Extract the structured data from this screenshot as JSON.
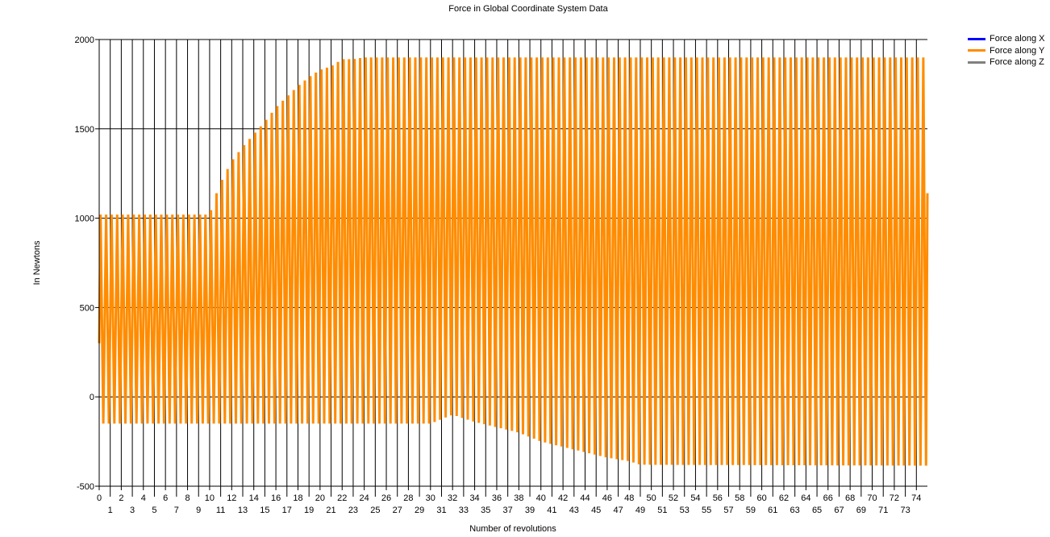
{
  "chart_data": {
    "type": "line",
    "title": "Force in Global Coordinate System Data",
    "xlabel": "Number of revolutions",
    "ylabel": "In Newtons",
    "xlim": [
      0,
      75
    ],
    "ylim": [
      -500,
      2000
    ],
    "yticks": [
      -500,
      0,
      500,
      1000,
      1500,
      2000
    ],
    "xticks": [
      0,
      1,
      2,
      3,
      4,
      5,
      6,
      7,
      8,
      9,
      10,
      11,
      12,
      13,
      14,
      15,
      16,
      17,
      18,
      19,
      20,
      21,
      22,
      23,
      24,
      25,
      26,
      27,
      28,
      29,
      30,
      31,
      32,
      33,
      34,
      35,
      36,
      37,
      38,
      39,
      40,
      41,
      42,
      43,
      44,
      45,
      46,
      47,
      48,
      49,
      50,
      51,
      52,
      53,
      54,
      55,
      56,
      57,
      58,
      59,
      60,
      61,
      62,
      63,
      64,
      65,
      66,
      67,
      68,
      69,
      70,
      71,
      72,
      73,
      74
    ],
    "grid": true,
    "legend_position": "top-right outside",
    "oscillations_per_revolution": 2,
    "series": [
      {
        "name": "Force along X",
        "color": "#0000ff",
        "values": []
      },
      {
        "name": "Force along Y",
        "color": "#ff8c00",
        "start_value": 300,
        "end_value": 1140,
        "envelope_x": [
          0,
          10,
          10.5,
          11,
          12,
          13,
          14,
          15,
          16,
          17,
          18,
          19,
          20,
          21,
          22,
          23,
          24,
          75
        ],
        "envelope_max": [
          1020,
          1020,
          1120,
          1200,
          1320,
          1400,
          1470,
          1540,
          1620,
          1680,
          1740,
          1790,
          1830,
          1850,
          1890,
          1890,
          1900,
          1900
        ],
        "envelope_min_x": [
          0,
          30,
          32,
          34,
          36,
          38,
          40,
          42,
          44,
          46,
          48,
          49,
          75
        ],
        "envelope_min": [
          -150,
          -150,
          -100,
          -140,
          -170,
          -200,
          -250,
          -280,
          -310,
          -340,
          -360,
          -380,
          -385
        ]
      },
      {
        "name": "Force along Z",
        "color": "#808080",
        "values": []
      }
    ]
  }
}
